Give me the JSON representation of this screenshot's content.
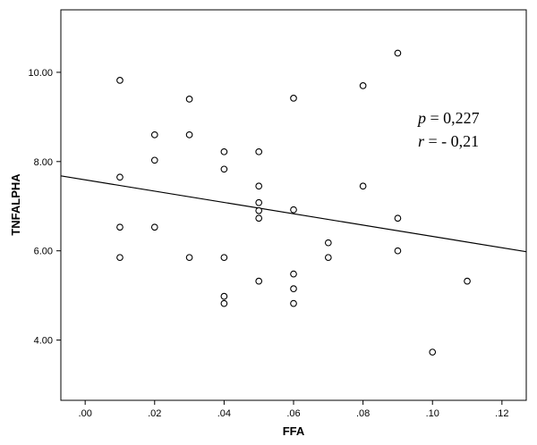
{
  "chart_data": {
    "type": "scatter",
    "title": "",
    "xlabel": "FFA",
    "ylabel": "TNFALPHA",
    "xlim": [
      -0.007,
      0.127
    ],
    "ylim": [
      2.65,
      11.4
    ],
    "x_ticks": [
      0.0,
      0.02,
      0.04,
      0.06,
      0.08,
      0.1,
      0.12
    ],
    "x_tick_labels": [
      ".00",
      ".02",
      ".04",
      ".06",
      ".08",
      ".10",
      ".12"
    ],
    "y_ticks": [
      4.0,
      6.0,
      8.0,
      10.0
    ],
    "y_tick_labels": [
      "4.00",
      "6.00",
      "8.00",
      "10.00"
    ],
    "grid": false,
    "points": [
      {
        "x": 0.01,
        "y": 9.82
      },
      {
        "x": 0.01,
        "y": 7.65
      },
      {
        "x": 0.01,
        "y": 6.53
      },
      {
        "x": 0.01,
        "y": 5.85
      },
      {
        "x": 0.02,
        "y": 8.6
      },
      {
        "x": 0.02,
        "y": 8.03
      },
      {
        "x": 0.02,
        "y": 6.53
      },
      {
        "x": 0.03,
        "y": 9.4
      },
      {
        "x": 0.03,
        "y": 8.6
      },
      {
        "x": 0.03,
        "y": 5.85
      },
      {
        "x": 0.04,
        "y": 8.22
      },
      {
        "x": 0.04,
        "y": 7.83
      },
      {
        "x": 0.04,
        "y": 5.85
      },
      {
        "x": 0.04,
        "y": 4.98
      },
      {
        "x": 0.04,
        "y": 4.82
      },
      {
        "x": 0.05,
        "y": 8.22
      },
      {
        "x": 0.05,
        "y": 7.45
      },
      {
        "x": 0.05,
        "y": 7.08
      },
      {
        "x": 0.05,
        "y": 6.9
      },
      {
        "x": 0.05,
        "y": 6.73
      },
      {
        "x": 0.05,
        "y": 5.32
      },
      {
        "x": 0.06,
        "y": 9.42
      },
      {
        "x": 0.06,
        "y": 6.92
      },
      {
        "x": 0.06,
        "y": 5.48
      },
      {
        "x": 0.06,
        "y": 5.15
      },
      {
        "x": 0.06,
        "y": 4.82
      },
      {
        "x": 0.07,
        "y": 6.18
      },
      {
        "x": 0.07,
        "y": 5.85
      },
      {
        "x": 0.08,
        "y": 9.7
      },
      {
        "x": 0.08,
        "y": 7.45
      },
      {
        "x": 0.09,
        "y": 10.43
      },
      {
        "x": 0.09,
        "y": 6.73
      },
      {
        "x": 0.09,
        "y": 6.0
      },
      {
        "x": 0.1,
        "y": 3.73
      },
      {
        "x": 0.11,
        "y": 5.32
      }
    ],
    "fit_line": {
      "x": [
        -0.007,
        0.127
      ],
      "y": [
        7.68,
        5.98
      ]
    },
    "annotations": {
      "p_symbol": "p",
      "p_text": " = 0,227",
      "r_symbol": "r",
      "r_text": " = - 0,21"
    }
  }
}
